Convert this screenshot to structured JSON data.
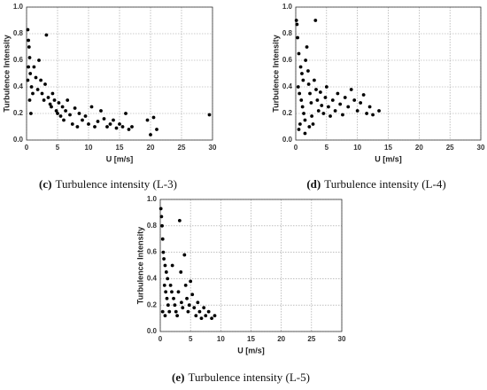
{
  "chart_data": [
    {
      "type": "scatter",
      "caption_label": "(c)",
      "caption": "Turbulence intensity (L-3)",
      "x_label": "U [m/s]",
      "y_label": "Turbulence Intensity",
      "color": "#000000",
      "grid": true,
      "xlim": [
        0,
        30
      ],
      "ylim": [
        0,
        1
      ],
      "xticks": [
        0,
        5,
        10,
        15,
        20,
        25,
        30
      ],
      "yticks": [
        {
          "value": 0,
          "label": "0.0"
        },
        0.2,
        0.4,
        0.6,
        0.8,
        {
          "value": 1,
          "label": "1.0"
        }
      ],
      "x": [
        0.2,
        0.3,
        0.4,
        0.5,
        0.3,
        0.6,
        0.2,
        0.8,
        1,
        0.5,
        0.7,
        1.2,
        1.5,
        1.8,
        2,
        2.3,
        2.5,
        2.8,
        3,
        3.2,
        3.5,
        3.8,
        4,
        4.2,
        4.5,
        4.8,
        5,
        5.2,
        5.5,
        5.8,
        6,
        6.3,
        6.6,
        7,
        7.4,
        7.8,
        8.2,
        8.5,
        9,
        9.5,
        10,
        10.5,
        11,
        11.5,
        12,
        12.5,
        13,
        13.5,
        14,
        14.5,
        15,
        15.5,
        16,
        16.5,
        17,
        19.5,
        20,
        20.5,
        21,
        29.5
      ],
      "values": [
        0.83,
        0.75,
        0.7,
        0.62,
        0.55,
        0.5,
        0.45,
        0.4,
        0.35,
        0.3,
        0.2,
        0.55,
        0.47,
        0.38,
        0.6,
        0.45,
        0.35,
        0.3,
        0.42,
        0.79,
        0.32,
        0.27,
        0.25,
        0.35,
        0.3,
        0.22,
        0.2,
        0.28,
        0.18,
        0.25,
        0.15,
        0.22,
        0.3,
        0.19,
        0.12,
        0.24,
        0.1,
        0.2,
        0.15,
        0.18,
        0.12,
        0.25,
        0.1,
        0.14,
        0.22,
        0.16,
        0.1,
        0.12,
        0.15,
        0.09,
        0.12,
        0.1,
        0.2,
        0.08,
        0.1,
        0.15,
        0.04,
        0.17,
        0.08,
        0.19
      ]
    },
    {
      "type": "scatter",
      "caption_label": "(d)",
      "caption": "Turbulence intensity (L-4)",
      "x_label": "U [m/s]",
      "y_label": "Turbulence Intensity",
      "color": "#000000",
      "grid": true,
      "xlim": [
        0,
        30
      ],
      "ylim": [
        0,
        1
      ],
      "xticks": [
        0,
        5,
        10,
        15,
        20,
        25,
        30
      ],
      "yticks": [
        {
          "value": 0,
          "label": "0.0"
        },
        0.2,
        0.4,
        0.6,
        0.8,
        {
          "value": 1,
          "label": "1.0"
        }
      ],
      "x": [
        0.1,
        0.2,
        0.3,
        0.5,
        0.8,
        1,
        1.2,
        0.4,
        0.6,
        0.9,
        1.1,
        1.3,
        1.5,
        1.6,
        1.8,
        2,
        2.1,
        2.3,
        2.5,
        2.6,
        2.8,
        3,
        3.2,
        3.3,
        3.5,
        3.7,
        4,
        4.2,
        4.5,
        4.8,
        5,
        5.3,
        5.6,
        6,
        6.4,
        6.8,
        7.2,
        7.6,
        8,
        8.5,
        9,
        9.5,
        10,
        10.5,
        11,
        11.5,
        12,
        12.5,
        13.5,
        0.5,
        1.5,
        2.2,
        0.7
      ],
      "values": [
        0.9,
        0.87,
        0.77,
        0.65,
        0.55,
        0.5,
        0.45,
        0.4,
        0.35,
        0.3,
        0.25,
        0.2,
        0.15,
        0.6,
        0.7,
        0.52,
        0.42,
        0.35,
        0.28,
        0.18,
        0.12,
        0.45,
        0.9,
        0.38,
        0.3,
        0.22,
        0.36,
        0.26,
        0.2,
        0.32,
        0.4,
        0.25,
        0.18,
        0.3,
        0.22,
        0.35,
        0.27,
        0.19,
        0.32,
        0.25,
        0.38,
        0.3,
        0.22,
        0.28,
        0.34,
        0.2,
        0.25,
        0.19,
        0.22,
        0.08,
        0.05,
        0.1,
        0.12
      ]
    },
    {
      "type": "scatter",
      "caption_label": "(e)",
      "caption": "Turbulence intensity (L-5)",
      "x_label": "U [m/s]",
      "y_label": "Turbulence Intensity",
      "color": "#000000",
      "grid": true,
      "xlim": [
        0,
        30
      ],
      "ylim": [
        0,
        1
      ],
      "xticks": [
        0,
        5,
        10,
        15,
        20,
        25,
        30
      ],
      "yticks": [
        {
          "value": 0,
          "label": "0.0"
        },
        0.2,
        0.4,
        0.6,
        0.8,
        {
          "value": 1,
          "label": "1.0"
        }
      ],
      "x": [
        0.1,
        0.2,
        0.3,
        0.4,
        0.5,
        0.6,
        0.8,
        1,
        1.2,
        0.7,
        0.9,
        1.1,
        1.3,
        1.5,
        1.7,
        1.9,
        2,
        2.2,
        2.4,
        2.6,
        2.8,
        3,
        3.2,
        3.4,
        3.5,
        3.7,
        4,
        4.2,
        4.4,
        4.6,
        4.8,
        5,
        5.3,
        5.6,
        5.9,
        6.2,
        6.5,
        6.8,
        7.2,
        7.5,
        8,
        8.5,
        9,
        0.4,
        0.8
      ],
      "values": [
        0.93,
        0.87,
        0.8,
        0.7,
        0.6,
        0.55,
        0.5,
        0.45,
        0.4,
        0.35,
        0.3,
        0.25,
        0.2,
        0.15,
        0.35,
        0.3,
        0.5,
        0.25,
        0.2,
        0.15,
        0.12,
        0.3,
        0.84,
        0.45,
        0.22,
        0.18,
        0.58,
        0.35,
        0.25,
        0.15,
        0.2,
        0.38,
        0.28,
        0.18,
        0.12,
        0.22,
        0.15,
        0.1,
        0.18,
        0.12,
        0.15,
        0.1,
        0.12,
        0.15,
        0.12
      ]
    }
  ]
}
